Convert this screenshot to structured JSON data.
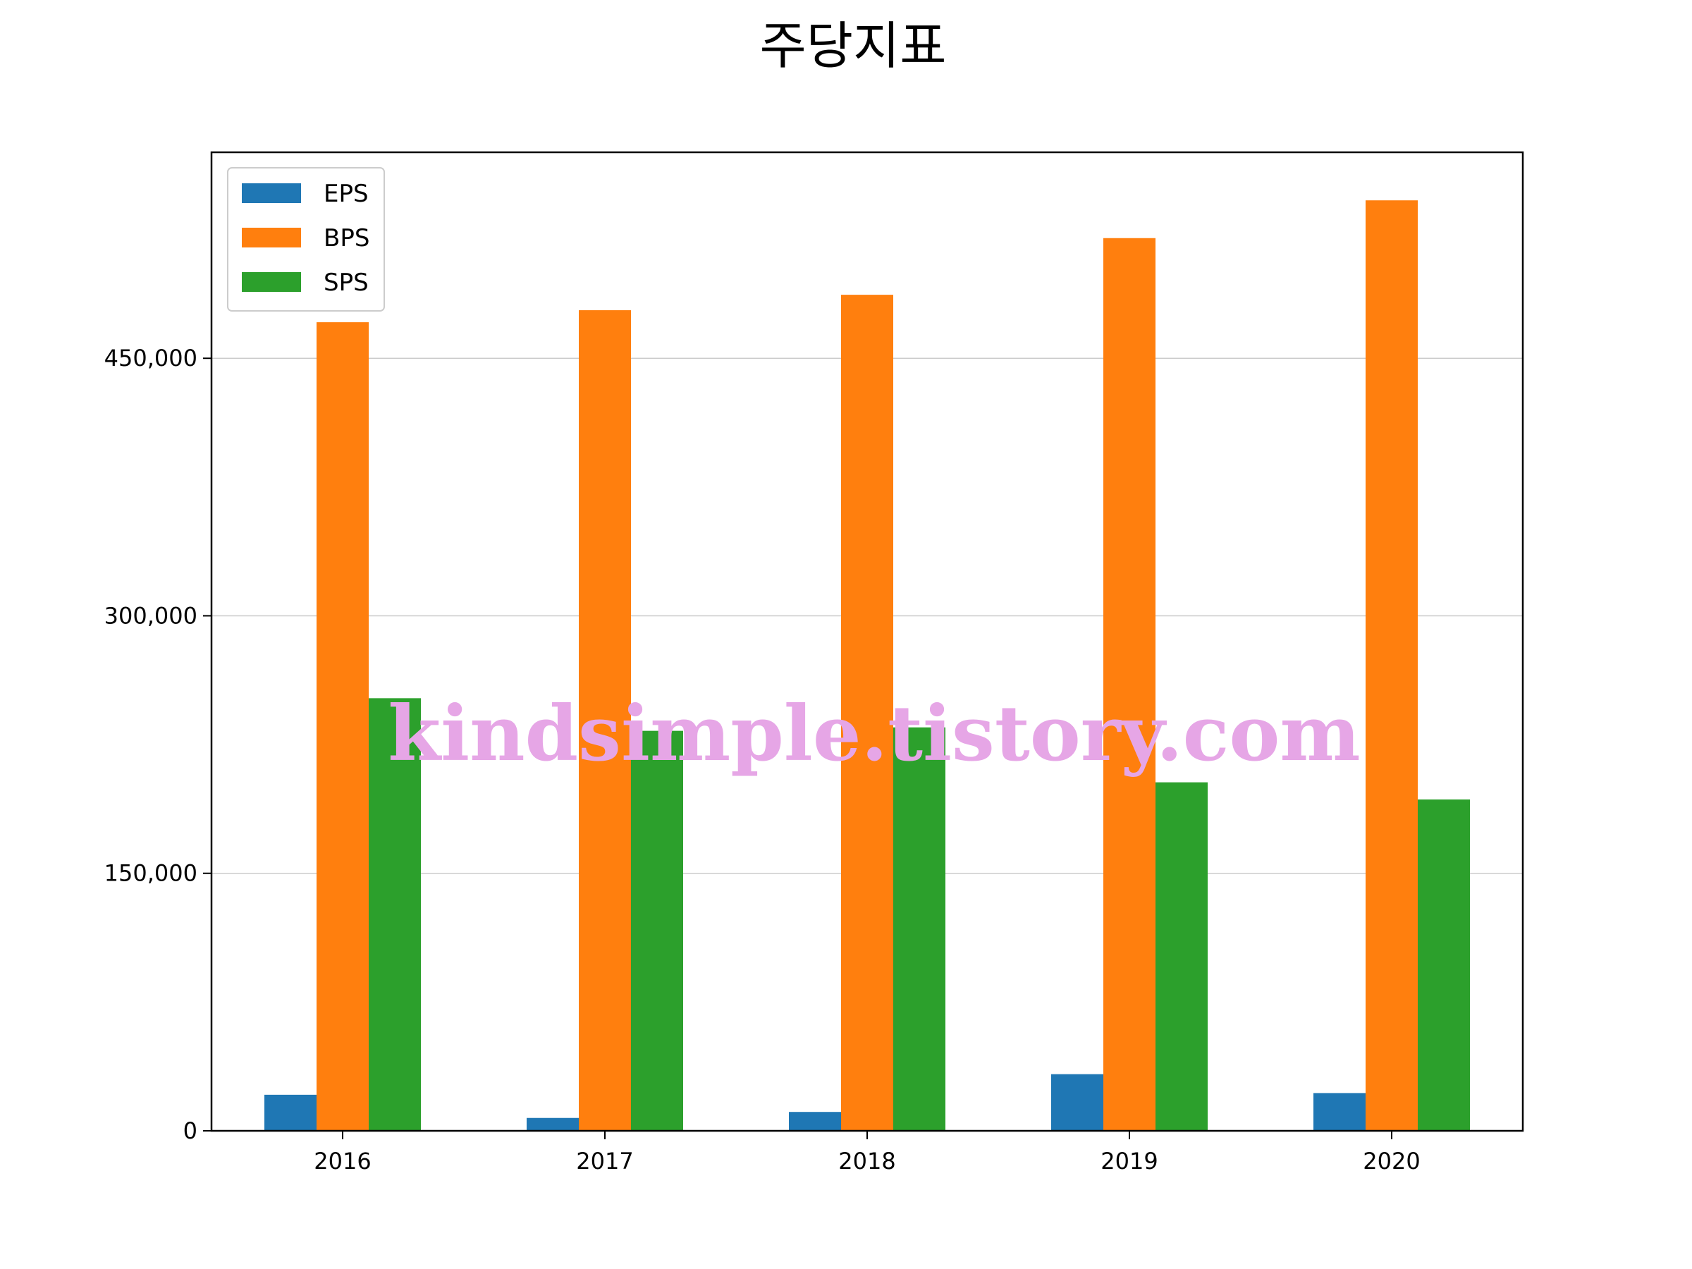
{
  "chart_data": {
    "type": "bar",
    "title": "주당지표",
    "xlabel": "",
    "ylabel": "",
    "categories": [
      "2016",
      "2017",
      "2018",
      "2019",
      "2020"
    ],
    "series": [
      {
        "name": "EPS",
        "color": "#1f77b4",
        "values": [
          21000,
          7500,
          11000,
          33000,
          22000
        ]
      },
      {
        "name": "BPS",
        "color": "#ff7f0e",
        "values": [
          471000,
          478000,
          487000,
          520000,
          542000
        ]
      },
      {
        "name": "SPS",
        "color": "#2ca02c",
        "values": [
          252000,
          233000,
          235000,
          203000,
          193000
        ]
      }
    ],
    "ylim": [
      0,
      570000
    ],
    "yticks": [
      0,
      150000,
      300000,
      450000
    ],
    "ytick_labels": [
      "0",
      "150,000",
      "300,000",
      "450,000"
    ],
    "grid": "y",
    "legend_position": "top-left",
    "watermark": "kindsimple.tistory.com"
  }
}
